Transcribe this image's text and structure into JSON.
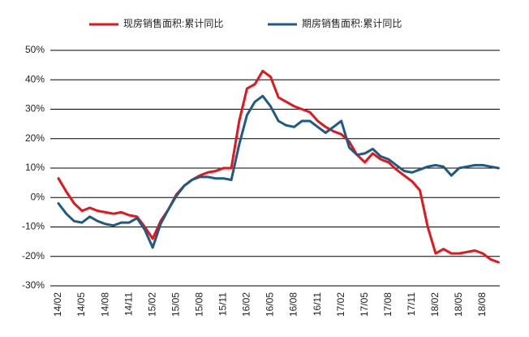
{
  "chart_data": {
    "type": "line",
    "categories": [
      "14/02",
      null,
      null,
      "14/05",
      null,
      null,
      "14/08",
      null,
      null,
      "14/11",
      null,
      null,
      "15/02",
      null,
      null,
      "15/05",
      null,
      null,
      "15/08",
      null,
      null,
      "15/11",
      null,
      null,
      "16/02",
      null,
      null,
      "16/05",
      null,
      null,
      "16/08",
      null,
      null,
      "16/11",
      null,
      null,
      "17/02",
      null,
      null,
      "17/05",
      null,
      null,
      "17/08",
      null,
      null,
      "17/11",
      null,
      null,
      "18/02",
      null,
      null,
      "18/05",
      null,
      null,
      "18/08",
      null,
      null
    ],
    "series": [
      {
        "name": "现房销售面积:累计同比",
        "color": "#e8141b",
        "values": [
          6.5,
          2,
          -2,
          -4.5,
          -3.5,
          -4.5,
          -5,
          -5.5,
          -5,
          -6,
          -6.5,
          -10,
          -14,
          -8,
          -4,
          1,
          4,
          6,
          7.5,
          8.5,
          9,
          10,
          10,
          26,
          37,
          38.5,
          43,
          41,
          34,
          32.5,
          31,
          30,
          29,
          26,
          24,
          22.5,
          21.5,
          19,
          14.5,
          12,
          15,
          13,
          12,
          9.5,
          7.5,
          5.5,
          2.5,
          -10,
          -19,
          -17.5,
          -19,
          -19,
          -18.5,
          -18,
          -19,
          -21,
          -22
        ]
      },
      {
        "name": "期房销售面积:累计同比",
        "color": "#1f5a85",
        "values": [
          -2,
          -5.5,
          -8,
          -8.5,
          -6.5,
          -8,
          -9,
          -9.5,
          -8.5,
          -8.5,
          -7,
          -11,
          -17,
          -9,
          -4,
          0.5,
          4,
          6,
          7,
          7,
          6.5,
          6.5,
          6,
          18,
          28,
          32.5,
          34.5,
          31,
          26,
          24.5,
          24,
          26,
          26,
          24,
          22,
          24,
          26,
          17,
          14.5,
          15,
          16.5,
          14,
          13,
          11,
          9,
          8.5,
          9.5,
          10.5,
          11,
          10.5,
          7.5,
          10,
          10.5,
          11,
          11,
          10.5,
          10
        ]
      }
    ],
    "ylim": [
      -30,
      50
    ],
    "yticks": [
      {
        "value": -30,
        "label": "-30%"
      },
      {
        "value": -20,
        "label": "-20%"
      },
      {
        "value": -10,
        "label": "-10%"
      },
      {
        "value": 0,
        "label": "0%"
      },
      {
        "value": 10,
        "label": "10%"
      },
      {
        "value": 20,
        "label": "20%"
      },
      {
        "value": 30,
        "label": "30%"
      },
      {
        "value": 40,
        "label": "40%"
      },
      {
        "value": 50,
        "label": "50%"
      }
    ],
    "grid": true
  }
}
